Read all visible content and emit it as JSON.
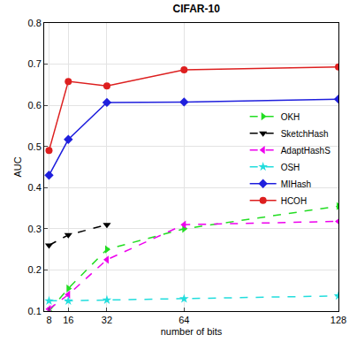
{
  "chart_data": {
    "type": "line",
    "title": "CIFAR-10",
    "x_label": "number of bits",
    "y_label": "AUC",
    "x": [
      8,
      16,
      32,
      64,
      128
    ],
    "series": [
      {
        "name": "OKH",
        "color": "#22dd22",
        "marker": "triangle-right",
        "line_style": "dash",
        "values": [
          0.1,
          0.155,
          0.25,
          0.3,
          0.355
        ]
      },
      {
        "name": "SketchHash",
        "color": "#000000",
        "marker": "triangle-down",
        "line_style": "dash",
        "values": [
          0.26,
          0.285,
          0.31,
          null,
          null
        ]
      },
      {
        "name": "AdaptHashS",
        "color": "#ee00ee",
        "marker": "triangle-left",
        "line_style": "dash",
        "values": [
          0.105,
          0.14,
          0.225,
          0.31,
          0.318
        ]
      },
      {
        "name": "OSH",
        "color": "#22dddd",
        "marker": "star",
        "line_style": "dash",
        "values": [
          0.125,
          0.125,
          0.127,
          0.13,
          0.137
        ]
      },
      {
        "name": "MIHash",
        "color": "#1f1fdd",
        "marker": "diamond",
        "line_style": "solid",
        "values": [
          0.43,
          0.517,
          0.607,
          0.608,
          0.615
        ]
      },
      {
        "name": "HCOH",
        "color": "#dd1f1f",
        "marker": "circle",
        "line_style": "solid",
        "values": [
          0.49,
          0.658,
          0.647,
          0.686,
          0.693
        ]
      }
    ],
    "xlim": [
      6,
      128
    ],
    "xticks": [
      8,
      16,
      32,
      64,
      128
    ],
    "ylim": [
      0.1,
      0.8
    ],
    "yticks": [
      0.1,
      0.2,
      0.3,
      0.4,
      0.5,
      0.6,
      0.7,
      0.8
    ],
    "grid": true,
    "legend": "right"
  }
}
